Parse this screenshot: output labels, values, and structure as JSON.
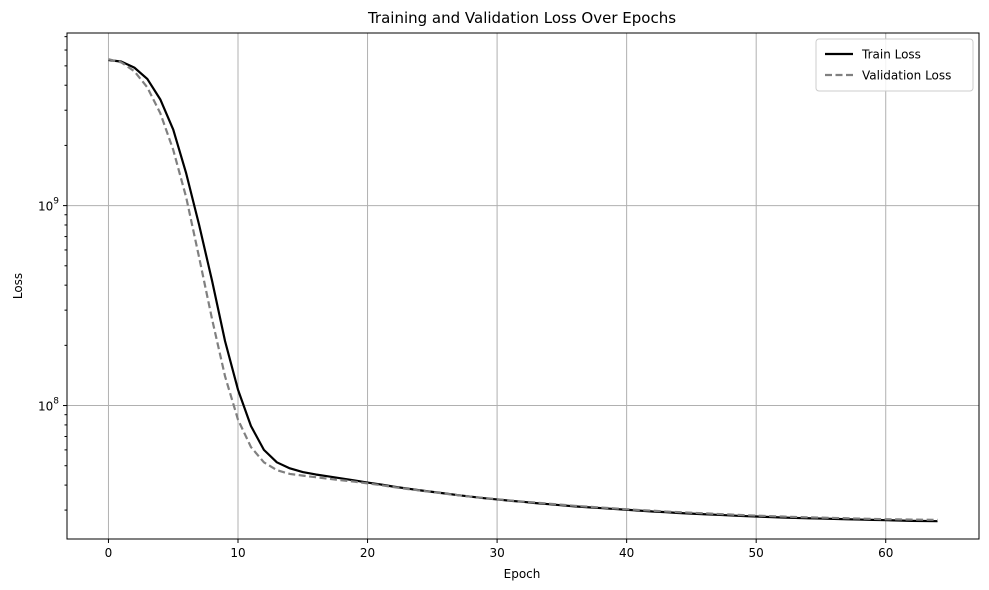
{
  "chart_data": {
    "type": "line",
    "title": "Training and Validation Loss Over Epochs",
    "xlabel": "Epoch",
    "ylabel": "Loss",
    "xlim": [
      -3.2,
      67.2
    ],
    "ylim": [
      21500000,
      7300000000
    ],
    "yscale": "log",
    "grid": true,
    "legend_position": "top-right",
    "x_ticks": [
      0,
      10,
      20,
      30,
      40,
      50,
      60
    ],
    "y_ticks": [
      {
        "value": 100000000,
        "base": "10",
        "exponent": "8"
      },
      {
        "value": 1000000000,
        "base": "10",
        "exponent": "9"
      }
    ],
    "x": [
      0,
      1,
      2,
      3,
      4,
      5,
      6,
      7,
      8,
      9,
      10,
      11,
      12,
      13,
      14,
      15,
      16,
      17,
      18,
      19,
      20,
      21,
      22,
      23,
      24,
      25,
      26,
      27,
      28,
      29,
      30,
      31,
      32,
      33,
      34,
      35,
      36,
      37,
      38,
      39,
      40,
      41,
      42,
      43,
      44,
      45,
      46,
      47,
      48,
      49,
      50,
      51,
      52,
      53,
      54,
      55,
      56,
      57,
      58,
      59,
      60,
      61,
      62,
      63,
      64
    ],
    "series": [
      {
        "name": "Train Loss",
        "color": "#000000",
        "dash": "solid",
        "values": [
          5350000000,
          5250000000,
          4900000000,
          4300000000,
          3400000000,
          2400000000,
          1450000000,
          800000000,
          420000000,
          210000000,
          120000000,
          79000000,
          60000000,
          52000000,
          48500000,
          46500000,
          45200000,
          44200000,
          43200000,
          42200000,
          41200000,
          40300000,
          39300000,
          38500000,
          37700000,
          37000000,
          36300000,
          35600000,
          35000000,
          34400000,
          33900000,
          33400000,
          33000000,
          32500000,
          32100000,
          31700000,
          31300000,
          31000000,
          30700000,
          30400000,
          30100000,
          29800000,
          29500000,
          29300000,
          29000000,
          28800000,
          28600000,
          28400000,
          28200000,
          28000000,
          27850000,
          27700000,
          27550000,
          27400000,
          27300000,
          27200000,
          27100000,
          27000000,
          26900000,
          26800000,
          26700000,
          26600000,
          26500000,
          26450000,
          26400000
        ]
      },
      {
        "name": "Validation Loss",
        "color": "#808080",
        "dash": "dashed",
        "values": [
          5400000000,
          5200000000,
          4700000000,
          3900000000,
          2900000000,
          1900000000,
          1100000000,
          550000000,
          270000000,
          140000000,
          85000000,
          62000000,
          52000000,
          47500000,
          45500000,
          44600000,
          43800000,
          43000000,
          42300000,
          41600000,
          40800000,
          40000000,
          39100000,
          38300000,
          37600000,
          36900000,
          36200000,
          35600000,
          35000000,
          34500000,
          34000000,
          33500000,
          33100000,
          32700000,
          32300000,
          31900000,
          31500000,
          31200000,
          30900000,
          30600000,
          30300000,
          30000000,
          29800000,
          29500000,
          29300000,
          29100000,
          28900000,
          28700000,
          28500000,
          28300000,
          28150000,
          28000000,
          27850000,
          27700000,
          27600000,
          27500000,
          27400000,
          27300000,
          27200000,
          27100000,
          27000000,
          26950000,
          26900000,
          26850000,
          26800000
        ]
      }
    ]
  }
}
